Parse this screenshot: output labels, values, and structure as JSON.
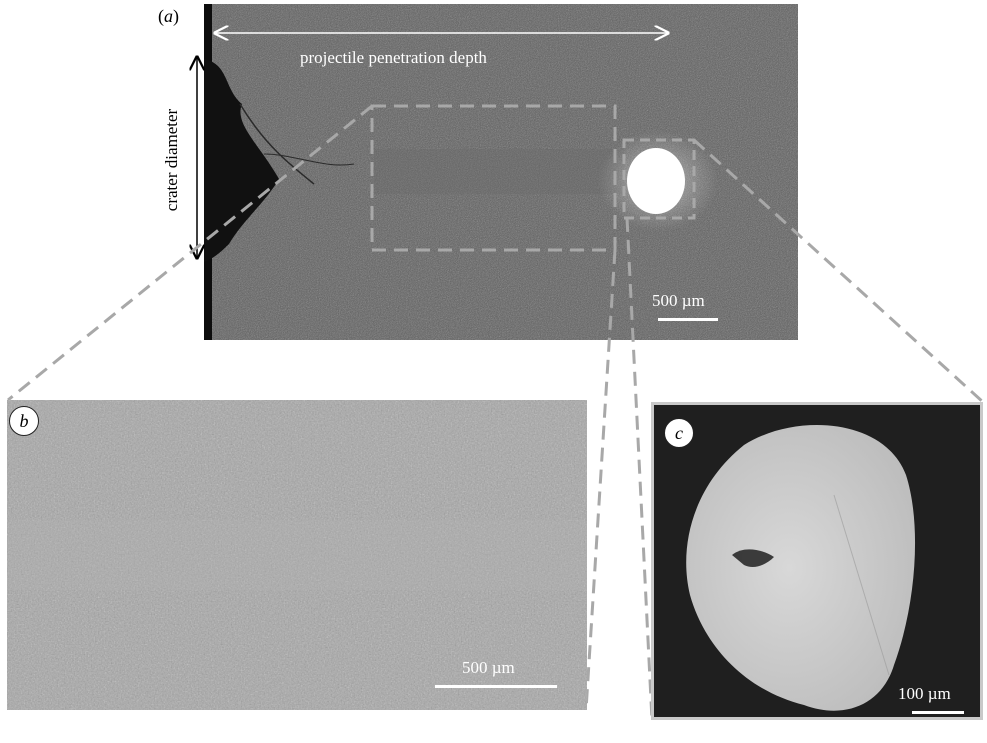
{
  "panel_a": {
    "label": "a",
    "penetration_label": "projectile penetration depth",
    "crater_label": "crater diameter",
    "scale_label": "500 µm"
  },
  "panel_b": {
    "label": "b",
    "scale_label": "500 µm"
  },
  "panel_c": {
    "label": "c",
    "scale_label": "100 µm"
  },
  "colors": {
    "image_dark": "#5a5a5a",
    "image_mid": "#a6a6a6",
    "image_black": "#1f1f1f",
    "dash_gray": "#a8a8a8",
    "projectile_white": "#ffffff"
  }
}
